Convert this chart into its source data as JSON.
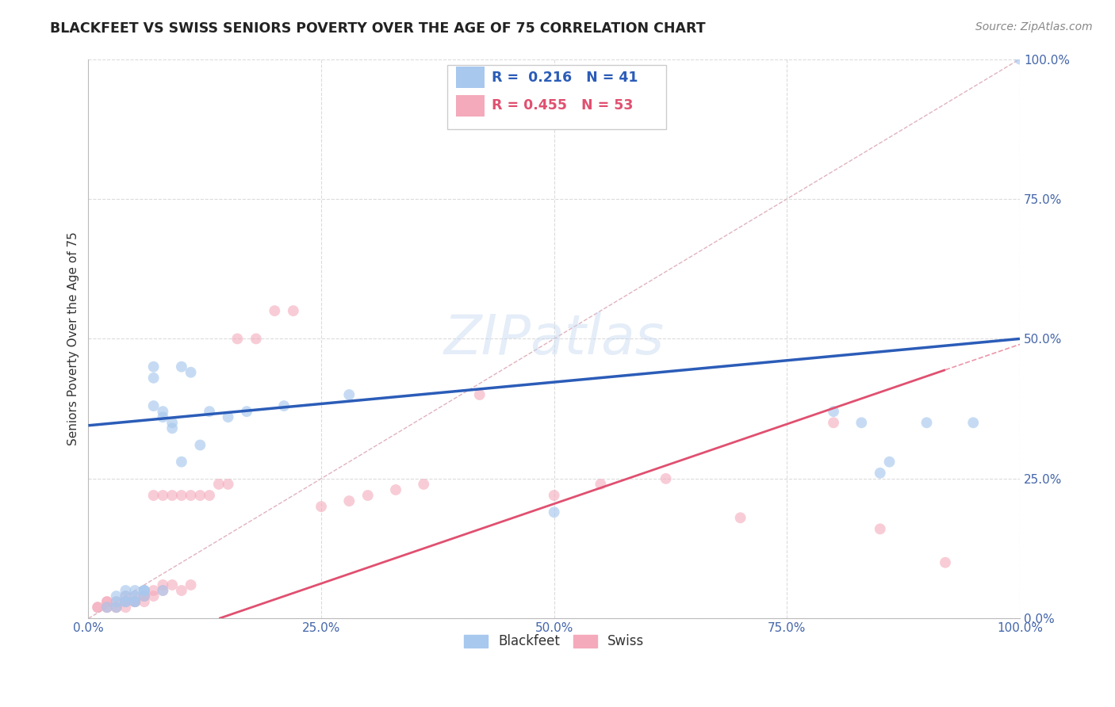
{
  "title": "BLACKFEET VS SWISS SENIORS POVERTY OVER THE AGE OF 75 CORRELATION CHART",
  "source": "Source: ZipAtlas.com",
  "ylabel": "Seniors Poverty Over the Age of 75",
  "xlim": [
    0.0,
    1.0
  ],
  "ylim": [
    0.0,
    1.0
  ],
  "xticks": [
    0.0,
    0.25,
    0.5,
    0.75,
    1.0
  ],
  "yticks": [
    0.0,
    0.25,
    0.5,
    0.75,
    1.0
  ],
  "xticklabels": [
    "0.0%",
    "25.0%",
    "50.0%",
    "75.0%",
    "100.0%"
  ],
  "yticklabels": [
    "0.0%",
    "25.0%",
    "50.0%",
    "75.0%",
    "100.0%"
  ],
  "blackfeet_color": "#A8C8EE",
  "swiss_color": "#F4AABB",
  "blackfeet_line_color": "#2B5CB8",
  "swiss_line_color": "#E05070",
  "diag_line_color": "#D0B0B8",
  "grid_color": "#CCCCCC",
  "watermark": "ZIPatlas",
  "blackfeet_intercept": 0.345,
  "blackfeet_slope": 0.155,
  "swiss_intercept": -0.08,
  "swiss_slope": 0.57,
  "blackfeet_x": [
    0.02,
    0.03,
    0.03,
    0.03,
    0.04,
    0.04,
    0.04,
    0.04,
    0.05,
    0.05,
    0.05,
    0.05,
    0.06,
    0.06,
    0.06,
    0.06,
    0.07,
    0.07,
    0.07,
    0.08,
    0.08,
    0.08,
    0.09,
    0.09,
    0.1,
    0.1,
    0.11,
    0.12,
    0.13,
    0.15,
    0.17,
    0.21,
    0.28,
    0.5,
    0.8,
    0.83,
    0.85,
    0.86,
    0.9,
    0.95,
    1.0
  ],
  "blackfeet_y": [
    0.02,
    0.02,
    0.03,
    0.04,
    0.03,
    0.03,
    0.04,
    0.05,
    0.03,
    0.03,
    0.04,
    0.05,
    0.04,
    0.05,
    0.05,
    0.05,
    0.43,
    0.45,
    0.38,
    0.05,
    0.37,
    0.36,
    0.35,
    0.34,
    0.28,
    0.45,
    0.44,
    0.31,
    0.37,
    0.36,
    0.37,
    0.38,
    0.4,
    0.19,
    0.37,
    0.35,
    0.26,
    0.28,
    0.35,
    0.35,
    1.0
  ],
  "swiss_x": [
    0.01,
    0.01,
    0.02,
    0.02,
    0.02,
    0.02,
    0.03,
    0.03,
    0.03,
    0.04,
    0.04,
    0.04,
    0.04,
    0.05,
    0.05,
    0.05,
    0.05,
    0.06,
    0.06,
    0.06,
    0.07,
    0.07,
    0.07,
    0.08,
    0.08,
    0.08,
    0.09,
    0.09,
    0.1,
    0.1,
    0.11,
    0.11,
    0.12,
    0.13,
    0.14,
    0.15,
    0.16,
    0.18,
    0.2,
    0.22,
    0.25,
    0.28,
    0.3,
    0.33,
    0.36,
    0.42,
    0.5,
    0.55,
    0.62,
    0.7,
    0.8,
    0.85,
    0.92
  ],
  "swiss_y": [
    0.02,
    0.02,
    0.02,
    0.02,
    0.03,
    0.03,
    0.02,
    0.02,
    0.03,
    0.02,
    0.03,
    0.03,
    0.04,
    0.03,
    0.03,
    0.03,
    0.04,
    0.03,
    0.04,
    0.04,
    0.04,
    0.05,
    0.22,
    0.05,
    0.06,
    0.22,
    0.06,
    0.22,
    0.05,
    0.22,
    0.06,
    0.22,
    0.22,
    0.22,
    0.24,
    0.24,
    0.5,
    0.5,
    0.55,
    0.55,
    0.2,
    0.21,
    0.22,
    0.23,
    0.24,
    0.4,
    0.22,
    0.24,
    0.25,
    0.18,
    0.35,
    0.16,
    0.1
  ]
}
